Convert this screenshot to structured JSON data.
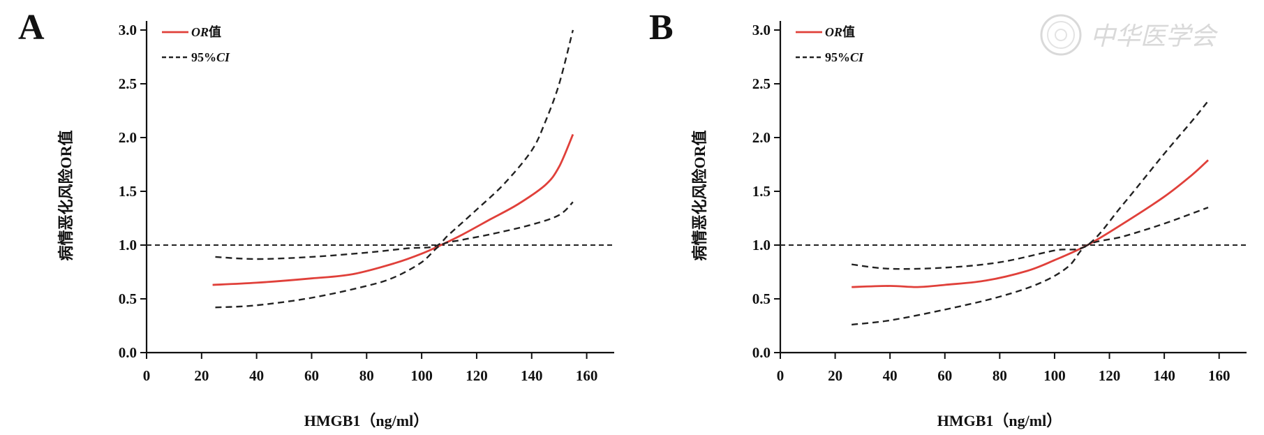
{
  "watermark": {
    "text": "中华医学会",
    "icon": "seal-icon"
  },
  "chart_data": [
    {
      "panel": "A",
      "type": "line",
      "xlabel": "HMGB1（ng/ml）",
      "ylabel": "病情恶化风险OR值",
      "xlim": [
        0,
        170
      ],
      "ylim": [
        0,
        3.0
      ],
      "xticks": [
        0,
        20,
        40,
        60,
        80,
        100,
        120,
        140,
        160
      ],
      "yticks": [
        "0.0",
        "0.5",
        "1.0",
        "1.5",
        "2.0",
        "2.5",
        "3.0"
      ],
      "reference_line": {
        "y": 1.0,
        "style": "dashed"
      },
      "legend_position": "top-left",
      "legend": [
        {
          "prefix": "",
          "italic": "OR",
          "suffix": "值",
          "color": "#e0403a",
          "style": "solid"
        },
        {
          "prefix": "95%",
          "italic": "CI",
          "suffix": "",
          "color": "#222222",
          "style": "dashed"
        }
      ],
      "series": [
        {
          "key": "or",
          "color": "#e0403a",
          "style": "solid",
          "x": [
            24,
            40,
            60,
            75,
            90,
            100,
            107,
            115,
            125,
            135,
            145,
            150,
            155
          ],
          "y": [
            0.63,
            0.65,
            0.69,
            0.73,
            0.83,
            0.92,
            1.0,
            1.1,
            1.24,
            1.38,
            1.56,
            1.73,
            2.03
          ]
        },
        {
          "key": "ci_upper",
          "color": "#222222",
          "style": "dashed",
          "x": [
            25,
            40,
            60,
            80,
            95,
            105,
            110,
            120,
            130,
            140,
            145,
            150,
            155
          ],
          "y": [
            0.89,
            0.87,
            0.89,
            0.93,
            0.97,
            0.99,
            1.1,
            1.33,
            1.57,
            1.88,
            2.15,
            2.5,
            3.0
          ]
        },
        {
          "key": "ci_lower",
          "color": "#222222",
          "style": "dashed",
          "x": [
            25,
            40,
            60,
            80,
            90,
            100,
            107,
            115,
            125,
            140,
            150,
            155
          ],
          "y": [
            0.42,
            0.44,
            0.51,
            0.62,
            0.7,
            0.84,
            1.0,
            1.05,
            1.1,
            1.19,
            1.28,
            1.4
          ]
        }
      ]
    },
    {
      "panel": "B",
      "type": "line",
      "xlabel": "HMGB1（ng/ml）",
      "ylabel": "病情恶化风险OR值",
      "xlim": [
        0,
        170
      ],
      "ylim": [
        0,
        3.0
      ],
      "xticks": [
        0,
        20,
        40,
        60,
        80,
        100,
        120,
        140,
        160
      ],
      "yticks": [
        "0.0",
        "0.5",
        "1.0",
        "1.5",
        "2.0",
        "2.5",
        "3.0"
      ],
      "reference_line": {
        "y": 1.0,
        "style": "dashed"
      },
      "legend_position": "top-left",
      "legend": [
        {
          "prefix": "",
          "italic": "OR",
          "suffix": "值",
          "color": "#e0403a",
          "style": "solid"
        },
        {
          "prefix": "95%",
          "italic": "CI",
          "suffix": "",
          "color": "#222222",
          "style": "dashed"
        }
      ],
      "series": [
        {
          "key": "or",
          "color": "#e0403a",
          "style": "solid",
          "x": [
            26,
            40,
            50,
            60,
            75,
            90,
            100,
            112,
            125,
            140,
            150,
            156
          ],
          "y": [
            0.61,
            0.62,
            0.61,
            0.63,
            0.67,
            0.76,
            0.86,
            1.0,
            1.2,
            1.45,
            1.65,
            1.79
          ]
        },
        {
          "key": "ci_upper",
          "color": "#222222",
          "style": "dashed",
          "x": [
            26,
            40,
            60,
            80,
            100,
            112,
            125,
            140,
            150,
            156
          ],
          "y": [
            0.82,
            0.78,
            0.79,
            0.84,
            0.95,
            1.0,
            1.38,
            1.85,
            2.15,
            2.34
          ]
        },
        {
          "key": "ci_lower",
          "color": "#222222",
          "style": "dashed",
          "x": [
            26,
            40,
            60,
            80,
            95,
            105,
            112,
            125,
            140,
            156
          ],
          "y": [
            0.26,
            0.3,
            0.4,
            0.52,
            0.65,
            0.8,
            1.0,
            1.08,
            1.2,
            1.35
          ]
        }
      ]
    }
  ]
}
